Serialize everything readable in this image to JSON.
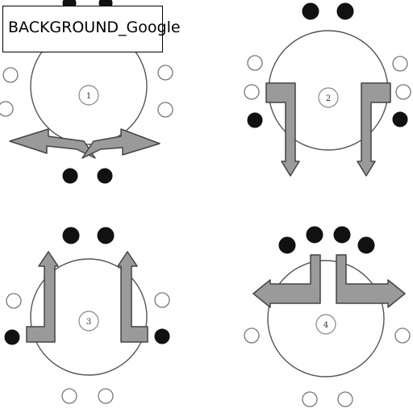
{
  "label": "BACKGROUND_Google",
  "panels": [
    {
      "number": "1"
    },
    {
      "number": "2"
    },
    {
      "number": "3"
    },
    {
      "number": "4"
    }
  ]
}
